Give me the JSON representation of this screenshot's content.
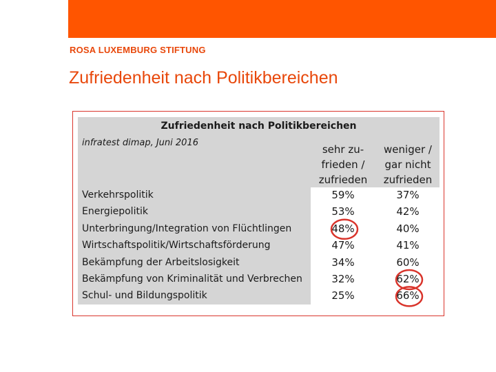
{
  "header": {
    "brand": "ROSA LUXEMBURG STIFTUNG",
    "title": "Zufriedenheit nach Politikbereichen"
  },
  "colors": {
    "accent": "#ff5500",
    "text_accent": "#e8470a",
    "highlight": "#d9342b"
  },
  "chart_data": {
    "type": "table",
    "title": "Zufriedenheit nach Politikbereichen",
    "source": "infratest dimap, Juni 2016",
    "columns": [
      {
        "lines": [
          "sehr zu-",
          "frieden /",
          "zufrieden"
        ]
      },
      {
        "lines": [
          "weniger /",
          "gar nicht",
          "zufrieden"
        ]
      }
    ],
    "rows": [
      {
        "label": "Verkehrspolitik",
        "values": [
          "59%",
          "37%"
        ]
      },
      {
        "label": "Energiepolitik",
        "values": [
          "53%",
          "42%"
        ]
      },
      {
        "label": "Unterbringung/Integration von Flüchtlingen",
        "values": [
          "48%",
          "40%"
        ]
      },
      {
        "label": "Wirtschaftspolitik/Wirtschaftsförderung",
        "values": [
          "47%",
          "41%"
        ]
      },
      {
        "label": "Bekämpfung der Arbeitslosigkeit",
        "values": [
          "34%",
          "60%"
        ]
      },
      {
        "label": "Bekämpfung von Kriminalität und Verbrechen",
        "values": [
          "32%",
          "62%"
        ]
      },
      {
        "label": "Schul- und Bildungspolitik",
        "values": [
          "25%",
          "66%"
        ]
      }
    ],
    "highlighted": [
      {
        "row": 2,
        "col": 0
      },
      {
        "row": 5,
        "col": 1
      },
      {
        "row": 6,
        "col": 1
      }
    ]
  }
}
